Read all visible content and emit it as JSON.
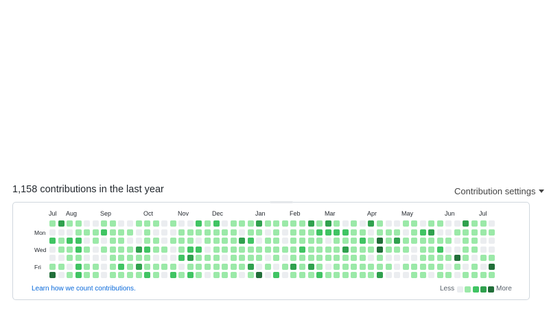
{
  "header": {
    "contributions_text": "1,158 contributions in the last year",
    "settings_label": "Contribution settings"
  },
  "calendar": {
    "months": [
      "Jul",
      "Aug",
      "Sep",
      "Oct",
      "Nov",
      "Dec",
      "Jan",
      "Feb",
      "Mar",
      "Apr",
      "May",
      "Jun",
      "Jul"
    ],
    "day_labels": [
      "Mon",
      "Wed",
      "Fri"
    ],
    "level_colors": [
      "#ebedf0",
      "#9be9a8",
      "#40c463",
      "#30a14e",
      "#216e39"
    ],
    "weeks": [
      [
        1,
        0,
        2,
        0,
        0,
        1,
        4
      ],
      [
        3,
        0,
        1,
        1,
        0,
        1,
        0
      ],
      [
        1,
        0,
        2,
        1,
        1,
        0,
        1
      ],
      [
        1,
        1,
        2,
        2,
        1,
        2,
        2
      ],
      [
        0,
        1,
        0,
        1,
        0,
        1,
        1
      ],
      [
        0,
        1,
        1,
        0,
        0,
        1,
        1
      ],
      [
        1,
        2,
        0,
        1,
        0,
        0,
        0
      ],
      [
        1,
        1,
        1,
        1,
        1,
        1,
        1
      ],
      [
        0,
        1,
        1,
        1,
        1,
        2,
        1
      ],
      [
        0,
        1,
        0,
        1,
        1,
        1,
        1
      ],
      [
        1,
        0,
        0,
        3,
        1,
        3,
        1
      ],
      [
        1,
        1,
        1,
        2,
        1,
        1,
        2
      ],
      [
        1,
        0,
        1,
        1,
        0,
        1,
        1
      ],
      [
        0,
        0,
        0,
        1,
        0,
        1,
        0
      ],
      [
        1,
        0,
        1,
        0,
        0,
        1,
        2
      ],
      [
        0,
        1,
        1,
        1,
        2,
        0,
        1
      ],
      [
        0,
        1,
        1,
        2,
        3,
        1,
        2
      ],
      [
        2,
        1,
        0,
        2,
        1,
        1,
        1
      ],
      [
        1,
        1,
        1,
        0,
        1,
        1,
        0
      ],
      [
        2,
        1,
        1,
        1,
        1,
        1,
        1
      ],
      [
        0,
        1,
        1,
        1,
        0,
        1,
        1
      ],
      [
        1,
        1,
        1,
        1,
        1,
        1,
        1
      ],
      [
        1,
        0,
        3,
        1,
        1,
        1,
        0
      ],
      [
        1,
        1,
        2,
        1,
        1,
        3,
        1
      ],
      [
        3,
        1,
        0,
        1,
        1,
        0,
        4
      ],
      [
        1,
        0,
        1,
        1,
        0,
        1,
        0
      ],
      [
        1,
        1,
        1,
        1,
        1,
        0,
        2
      ],
      [
        1,
        0,
        0,
        1,
        0,
        1,
        0
      ],
      [
        1,
        1,
        1,
        1,
        1,
        3,
        1
      ],
      [
        1,
        1,
        1,
        2,
        1,
        1,
        1
      ],
      [
        3,
        1,
        1,
        1,
        1,
        3,
        1
      ],
      [
        1,
        2,
        1,
        1,
        1,
        1,
        2
      ],
      [
        3,
        2,
        0,
        1,
        1,
        0,
        1
      ],
      [
        1,
        2,
        1,
        1,
        1,
        1,
        1
      ],
      [
        0,
        2,
        1,
        3,
        1,
        1,
        1
      ],
      [
        1,
        1,
        1,
        1,
        1,
        1,
        1
      ],
      [
        0,
        1,
        2,
        1,
        1,
        1,
        1
      ],
      [
        3,
        0,
        1,
        1,
        0,
        1,
        1
      ],
      [
        1,
        1,
        4,
        4,
        1,
        1,
        3
      ],
      [
        0,
        1,
        1,
        1,
        0,
        1,
        0
      ],
      [
        0,
        1,
        3,
        1,
        0,
        0,
        0
      ],
      [
        1,
        0,
        1,
        1,
        0,
        1,
        0
      ],
      [
        1,
        1,
        1,
        0,
        0,
        1,
        1
      ],
      [
        0,
        2,
        1,
        1,
        1,
        1,
        1
      ],
      [
        1,
        3,
        1,
        1,
        1,
        1,
        0
      ],
      [
        1,
        0,
        1,
        2,
        1,
        1,
        1
      ],
      [
        0,
        0,
        1,
        0,
        1,
        0,
        1
      ],
      [
        0,
        1,
        0,
        0,
        4,
        1,
        0
      ],
      [
        3,
        1,
        1,
        1,
        1,
        0,
        1
      ],
      [
        1,
        1,
        1,
        1,
        0,
        1,
        1
      ],
      [
        1,
        1,
        0,
        0,
        1,
        0,
        1
      ],
      [
        0,
        1,
        0,
        0,
        1,
        4,
        1
      ]
    ]
  },
  "footer": {
    "learn_link": "Learn how we count contributions.",
    "less_label": "Less",
    "more_label": "More"
  }
}
